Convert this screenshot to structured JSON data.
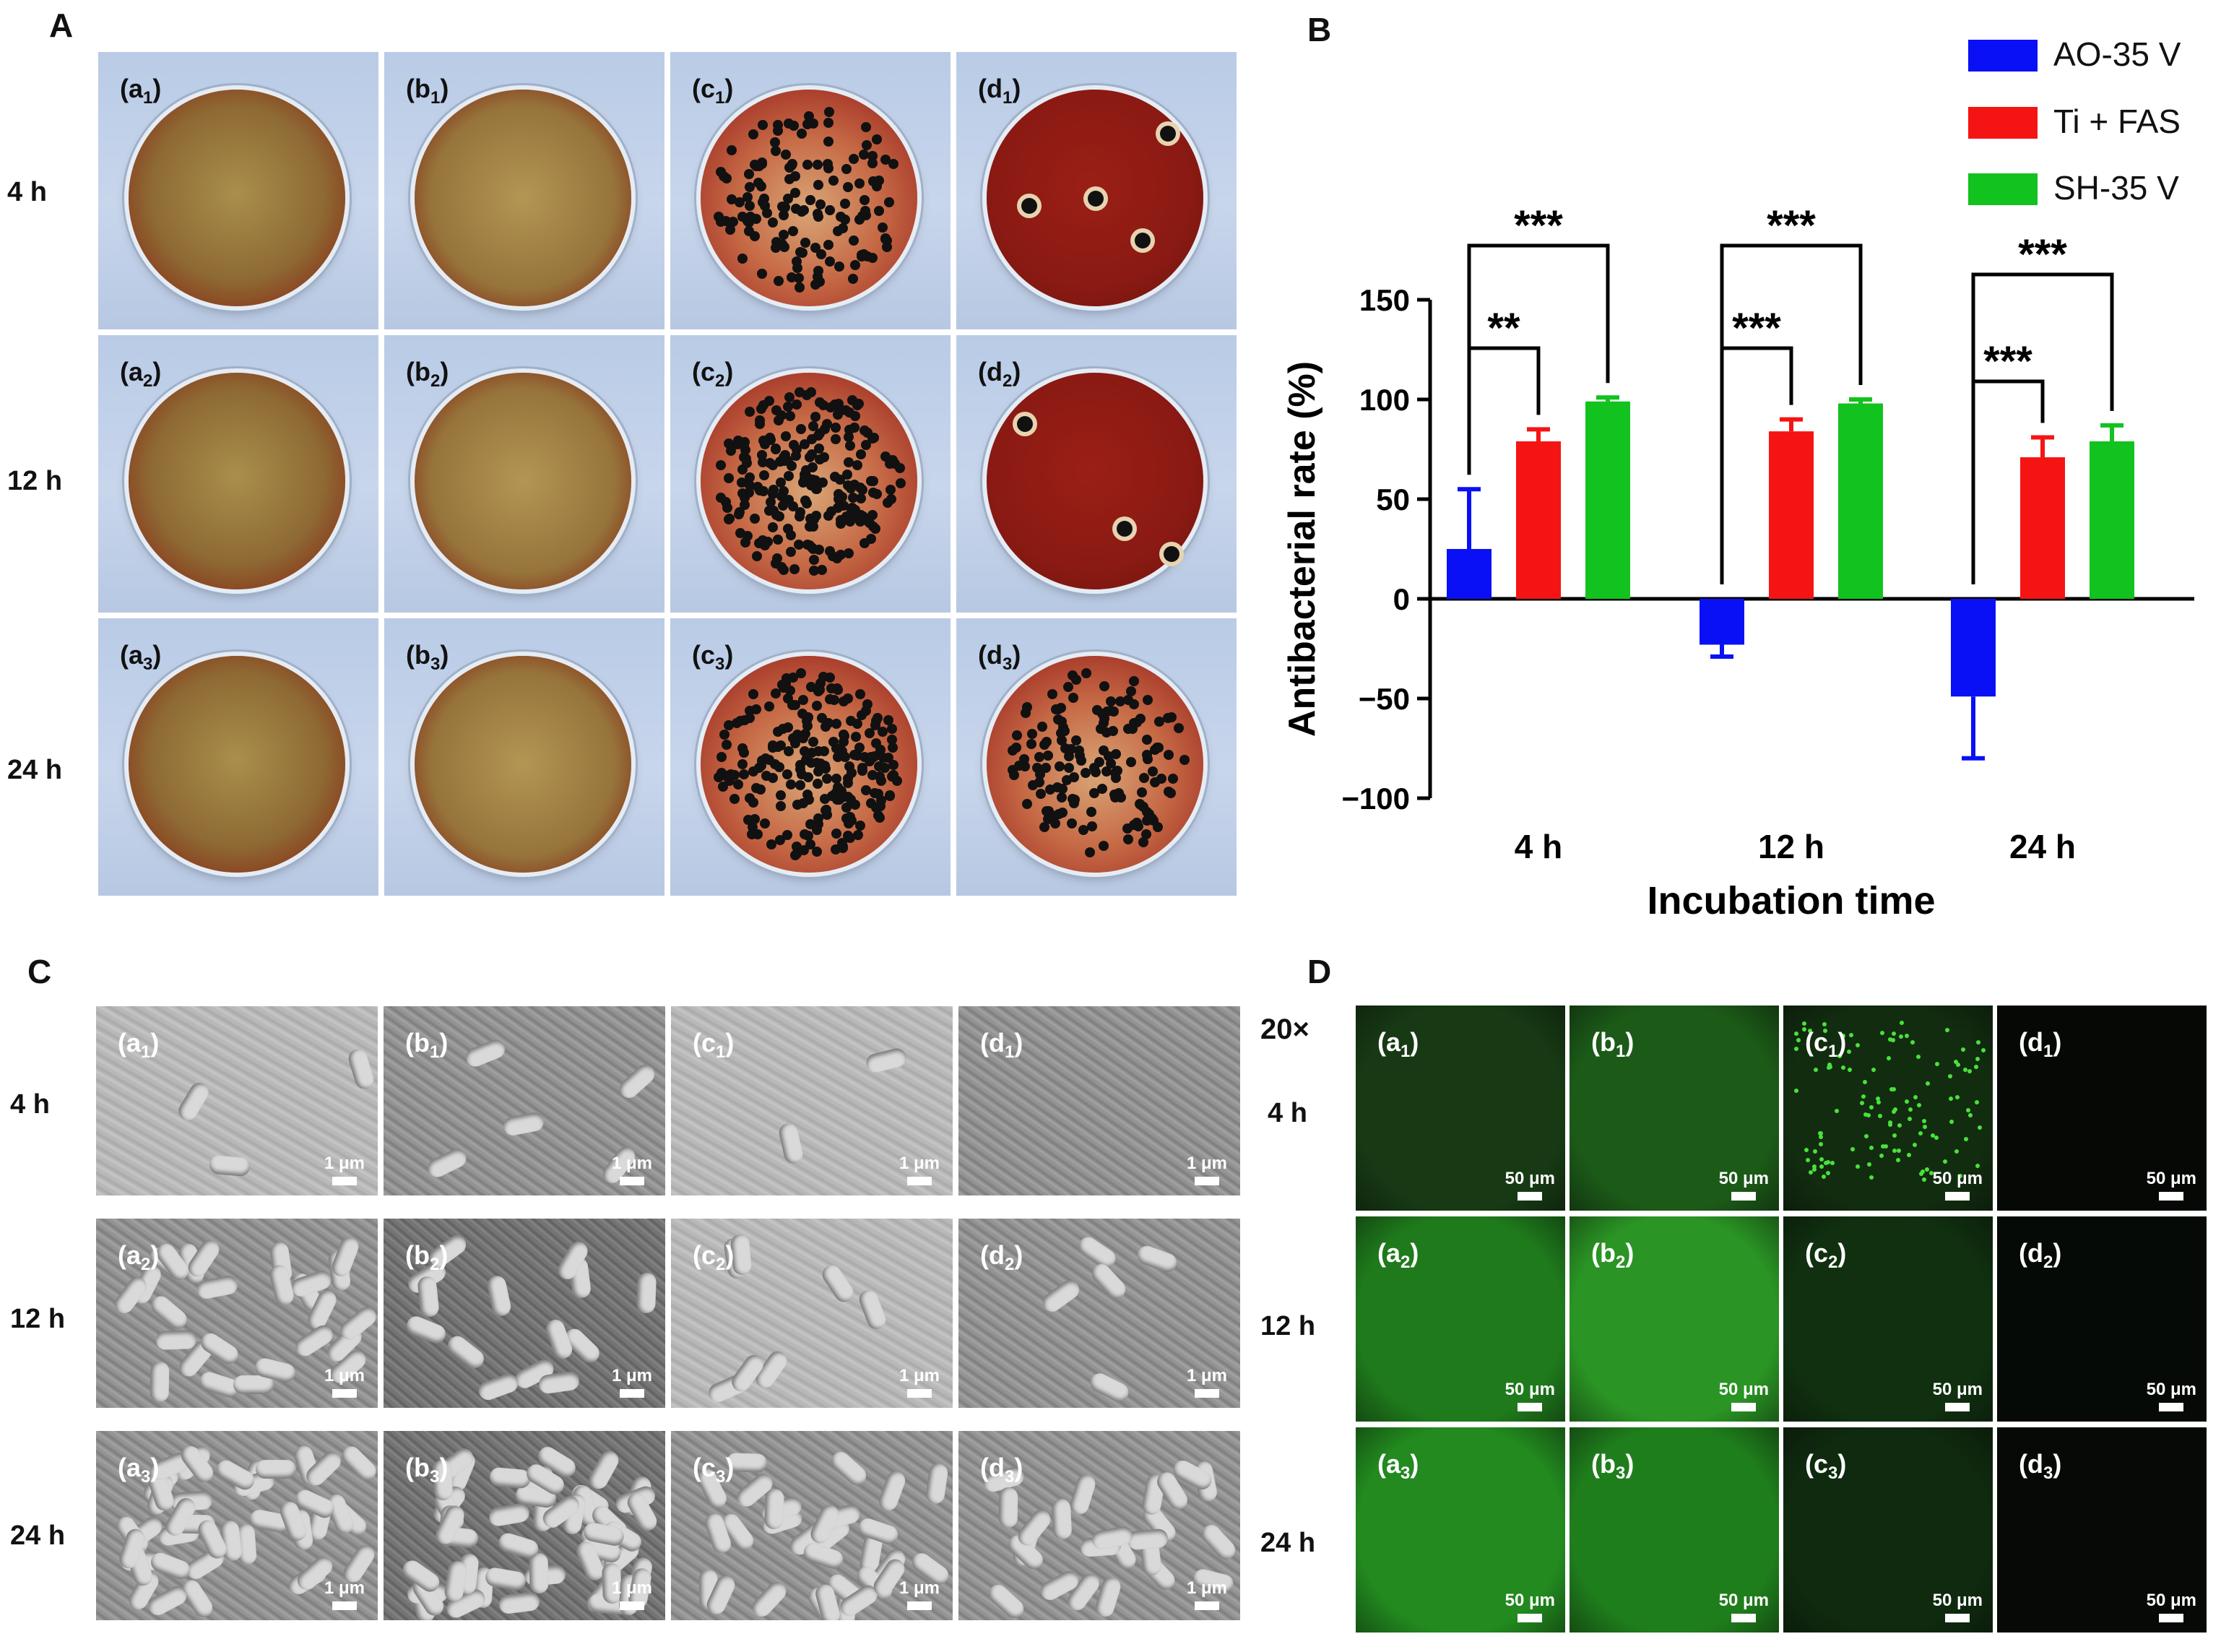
{
  "panel_labels": {
    "A": "A",
    "B": "B",
    "C": "C",
    "D": "D"
  },
  "time_rows": [
    "4 h",
    "12 h",
    "24 h"
  ],
  "tile_letters": [
    "a",
    "b",
    "c",
    "d"
  ],
  "panel_a_tiles": [
    [
      {
        "l": "a",
        "n": "1"
      },
      {
        "l": "b",
        "n": "1"
      },
      {
        "l": "c",
        "n": "1"
      },
      {
        "l": "d",
        "n": "1"
      }
    ],
    [
      {
        "l": "a",
        "n": "2"
      },
      {
        "l": "b",
        "n": "2"
      },
      {
        "l": "c",
        "n": "2"
      },
      {
        "l": "d",
        "n": "2"
      }
    ],
    [
      {
        "l": "a",
        "n": "3"
      },
      {
        "l": "b",
        "n": "3"
      },
      {
        "l": "c",
        "n": "3"
      },
      {
        "l": "d",
        "n": "3"
      }
    ]
  ],
  "sem_scale": "1 μm",
  "fluor_scale": "50 μm",
  "fluor_magnification": "20×",
  "colors": {
    "AO": "#0a10f5",
    "TiFAS": "#f51414",
    "SH": "#12c21e"
  },
  "chart_data": {
    "type": "bar",
    "categories": [
      "4 h",
      "12 h",
      "24 h"
    ],
    "series": [
      {
        "name": "AO-35 V",
        "values": [
          25,
          -23,
          -49
        ],
        "errors": [
          30,
          6,
          31
        ],
        "color": "#0a10f5"
      },
      {
        "name": "Ti + FAS",
        "values": [
          79,
          84,
          71
        ],
        "errors": [
          6,
          6,
          10
        ],
        "color": "#f51414"
      },
      {
        "name": "SH-35 V",
        "values": [
          99,
          98,
          79
        ],
        "errors": [
          2,
          2,
          8
        ],
        "color": "#12c21e"
      }
    ],
    "ylabel": "Antibacterial rate (%)",
    "xlabel": "Incubation time",
    "ylim": [
      -100,
      150
    ],
    "yticks": [
      150,
      100,
      50,
      0,
      -50,
      -100
    ],
    "ytick_labels": [
      "150",
      "100",
      "50",
      "0",
      "−50",
      "−100"
    ],
    "legend": "top-right",
    "significance": [
      {
        "group": 0,
        "pair": "AO vs TiFAS",
        "label": "**"
      },
      {
        "group": 0,
        "pair": "AO vs SH",
        "label": "***"
      },
      {
        "group": 1,
        "pair": "AO vs TiFAS",
        "label": "***"
      },
      {
        "group": 1,
        "pair": "AO vs SH",
        "label": "***"
      },
      {
        "group": 2,
        "pair": "AO vs TiFAS",
        "label": "***"
      },
      {
        "group": 2,
        "pair": "AO vs SH",
        "label": "***"
      }
    ]
  }
}
